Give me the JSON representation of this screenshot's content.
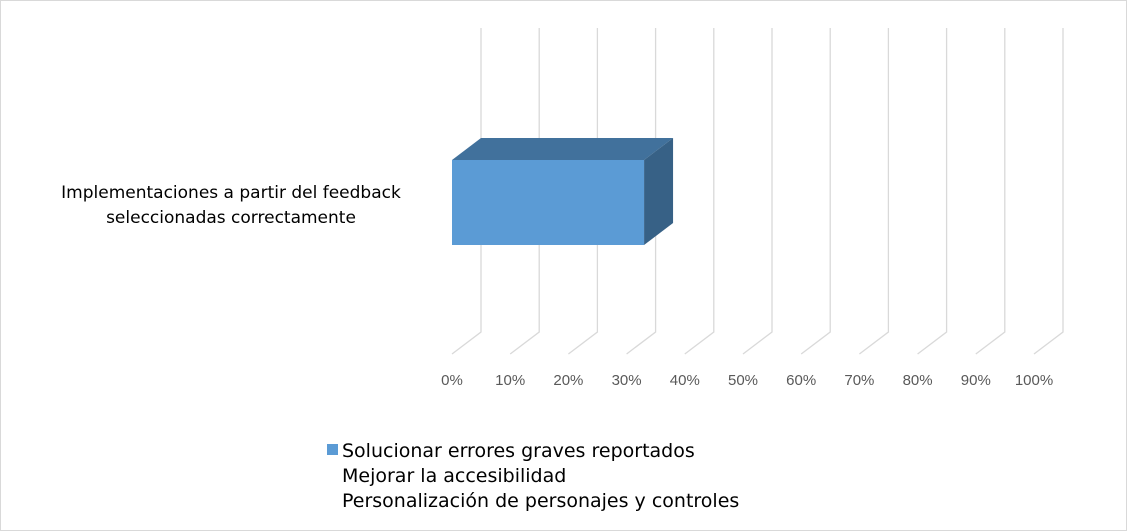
{
  "chart_data": {
    "type": "bar",
    "orientation": "horizontal",
    "three_d": true,
    "categories": [
      "Implementaciones a partir del feedback seleccionadas correctamente"
    ],
    "category_lines": [
      "Implementaciones a partir del feedback",
      "seleccionadas correctamente"
    ],
    "series": [
      {
        "name": "Solucionar errores graves reportados",
        "values": [
          33
        ],
        "color": "#5b9bd5"
      },
      {
        "name": "Mejorar la accesibilidad",
        "values": [
          0
        ]
      },
      {
        "name": "Personalización de personajes y controles",
        "values": [
          0
        ]
      }
    ],
    "x_ticks": [
      "0%",
      "10%",
      "20%",
      "30%",
      "40%",
      "50%",
      "60%",
      "70%",
      "80%",
      "90%",
      "100%"
    ],
    "xlim": [
      0,
      100
    ],
    "grid": true,
    "legend_position": "bottom"
  }
}
